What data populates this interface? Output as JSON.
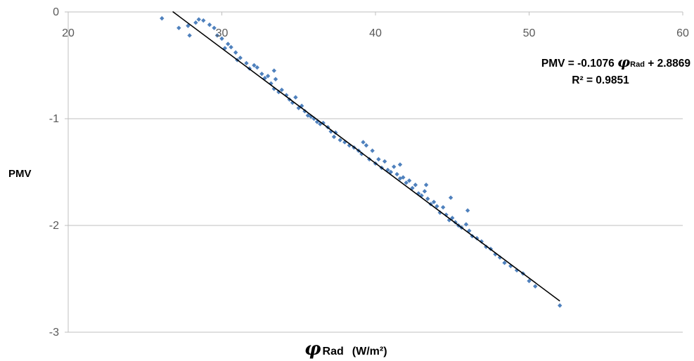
{
  "chart_data": {
    "type": "scatter",
    "title": "",
    "ylabel": "PMV",
    "xlabel": {
      "symbol": "φ",
      "subscript": "Rad",
      "unit": "(W/m²)"
    },
    "xlim": [
      20,
      60
    ],
    "ylim": [
      -3,
      0
    ],
    "x_ticks": [
      "20",
      "30",
      "40",
      "50",
      "60"
    ],
    "y_ticks": [
      "0",
      "-1",
      "-2",
      "-3"
    ],
    "x_axis_position": "top",
    "grid": "horizontal",
    "colors": {
      "points": "#4f81bd",
      "trendline": "#000000",
      "gridline": "#bfbfbf",
      "tick_text": "#595959"
    },
    "trendline": {
      "slope": -0.1076,
      "intercept": 2.8869,
      "x_range": [
        26.8,
        52.0
      ],
      "equation_prefix": "PMV = -0.1076 ",
      "equation_symbol": "φ",
      "equation_subscript": "Rad",
      "equation_suffix": " + 2.8869",
      "r2_label": "R² = 0.9851"
    },
    "points": [
      [
        26.1,
        -0.06
      ],
      [
        27.2,
        -0.15
      ],
      [
        27.8,
        -0.13
      ],
      [
        27.9,
        -0.22
      ],
      [
        28.3,
        -0.1
      ],
      [
        28.5,
        -0.07
      ],
      [
        28.8,
        -0.08
      ],
      [
        29.2,
        -0.12
      ],
      [
        29.5,
        -0.15
      ],
      [
        29.7,
        -0.22
      ],
      [
        30.0,
        -0.25
      ],
      [
        30.2,
        -0.34
      ],
      [
        30.4,
        -0.3
      ],
      [
        30.6,
        -0.33
      ],
      [
        30.9,
        -0.38
      ],
      [
        31.2,
        -0.43
      ],
      [
        31.6,
        -0.48
      ],
      [
        31.8,
        -0.53
      ],
      [
        32.1,
        -0.5
      ],
      [
        32.3,
        -0.52
      ],
      [
        32.6,
        -0.58
      ],
      [
        32.8,
        -0.62
      ],
      [
        33.0,
        -0.6
      ],
      [
        33.2,
        -0.67
      ],
      [
        33.4,
        -0.72
      ],
      [
        33.5,
        -0.63
      ],
      [
        33.7,
        -0.75
      ],
      [
        33.9,
        -0.73
      ],
      [
        34.2,
        -0.78
      ],
      [
        34.4,
        -0.82
      ],
      [
        34.6,
        -0.85
      ],
      [
        34.8,
        -0.8
      ],
      [
        35.0,
        -0.9
      ],
      [
        35.2,
        -0.88
      ],
      [
        35.4,
        -0.93
      ],
      [
        35.6,
        -0.97
      ],
      [
        35.8,
        -0.98
      ],
      [
        36.0,
        -1.0
      ],
      [
        36.2,
        -1.03
      ],
      [
        36.4,
        -1.05
      ],
      [
        36.6,
        -1.04
      ],
      [
        36.9,
        -1.08
      ],
      [
        37.1,
        -1.12
      ],
      [
        37.4,
        -1.13
      ],
      [
        37.7,
        -1.2
      ],
      [
        38.0,
        -1.22
      ],
      [
        38.3,
        -1.25
      ],
      [
        38.6,
        -1.27
      ],
      [
        38.9,
        -1.3
      ],
      [
        39.1,
        -1.33
      ],
      [
        39.2,
        -1.22
      ],
      [
        39.4,
        -1.25
      ],
      [
        39.6,
        -1.38
      ],
      [
        39.8,
        -1.3
      ],
      [
        40.0,
        -1.42
      ],
      [
        40.2,
        -1.38
      ],
      [
        40.4,
        -1.46
      ],
      [
        40.6,
        -1.4
      ],
      [
        40.8,
        -1.48
      ],
      [
        41.0,
        -1.5
      ],
      [
        41.2,
        -1.45
      ],
      [
        41.4,
        -1.52
      ],
      [
        41.6,
        -1.56
      ],
      [
        41.8,
        -1.55
      ],
      [
        42.0,
        -1.6
      ],
      [
        42.2,
        -1.58
      ],
      [
        42.4,
        -1.65
      ],
      [
        42.6,
        -1.62
      ],
      [
        42.8,
        -1.7
      ],
      [
        43.0,
        -1.72
      ],
      [
        43.2,
        -1.68
      ],
      [
        43.4,
        -1.75
      ],
      [
        43.6,
        -1.8
      ],
      [
        43.8,
        -1.78
      ],
      [
        44.0,
        -1.82
      ],
      [
        44.2,
        -1.88
      ],
      [
        44.4,
        -1.83
      ],
      [
        44.6,
        -1.9
      ],
      [
        44.8,
        -1.95
      ],
      [
        45.0,
        -1.93
      ],
      [
        45.2,
        -1.97
      ],
      [
        45.4,
        -2.0
      ],
      [
        45.6,
        -2.02
      ],
      [
        45.9,
        -1.99
      ],
      [
        46.1,
        -2.05
      ],
      [
        46.3,
        -2.1
      ],
      [
        46.6,
        -2.12
      ],
      [
        46.9,
        -2.15
      ],
      [
        47.2,
        -2.2
      ],
      [
        47.5,
        -2.22
      ],
      [
        47.8,
        -2.27
      ],
      [
        48.1,
        -2.3
      ],
      [
        48.4,
        -2.35
      ],
      [
        48.8,
        -2.38
      ],
      [
        49.2,
        -2.42
      ],
      [
        49.6,
        -2.45
      ],
      [
        50.0,
        -2.52
      ],
      [
        50.4,
        -2.57
      ],
      [
        52.0,
        -2.75
      ],
      [
        46.0,
        -1.86
      ],
      [
        31.0,
        -0.45
      ],
      [
        33.4,
        -0.55
      ],
      [
        37.3,
        -1.17
      ],
      [
        41.6,
        -1.43
      ],
      [
        43.3,
        -1.62
      ],
      [
        44.9,
        -1.74
      ]
    ]
  }
}
